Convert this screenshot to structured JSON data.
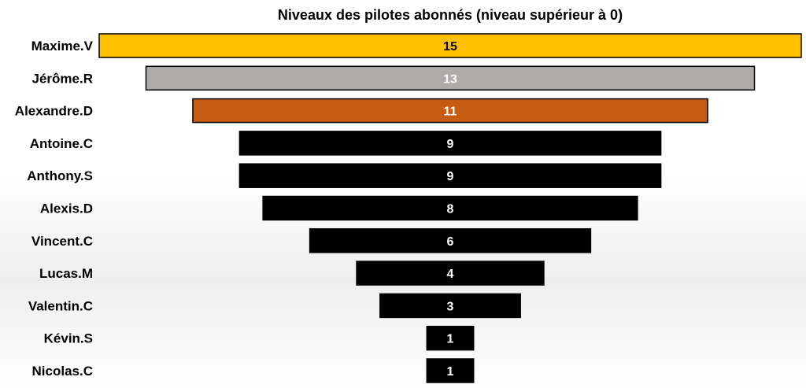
{
  "chart_data": {
    "type": "bar",
    "orientation": "horizontal",
    "layout": "funnel",
    "title": "Niveaux des pilotes abonnés (niveau supérieur à 0)",
    "categories": [
      "Maxime.V",
      "Jérôme.R",
      "Alexandre.D",
      "Antoine.C",
      "Anthony.S",
      "Alexis.D",
      "Vincent.C",
      "Lucas.M",
      "Valentin.C",
      "Kévin.S",
      "Nicolas.C"
    ],
    "values": [
      15,
      13,
      11,
      9,
      9,
      8,
      6,
      4,
      3,
      1,
      1
    ],
    "xlim": [
      0,
      15
    ],
    "grid": false,
    "legend": "none",
    "colors": [
      "#FFC000",
      "#AEAAAA",
      "#C55A11",
      "#000000",
      "#000000",
      "#000000",
      "#000000",
      "#000000",
      "#000000",
      "#000000",
      "#000000"
    ],
    "label_colors": [
      "#000000",
      "#FFFFFF",
      "#FFFFFF",
      "#FFFFFF",
      "#FFFFFF",
      "#FFFFFF",
      "#FFFFFF",
      "#FFFFFF",
      "#FFFFFF",
      "#FFFFFF",
      "#FFFFFF"
    ]
  }
}
